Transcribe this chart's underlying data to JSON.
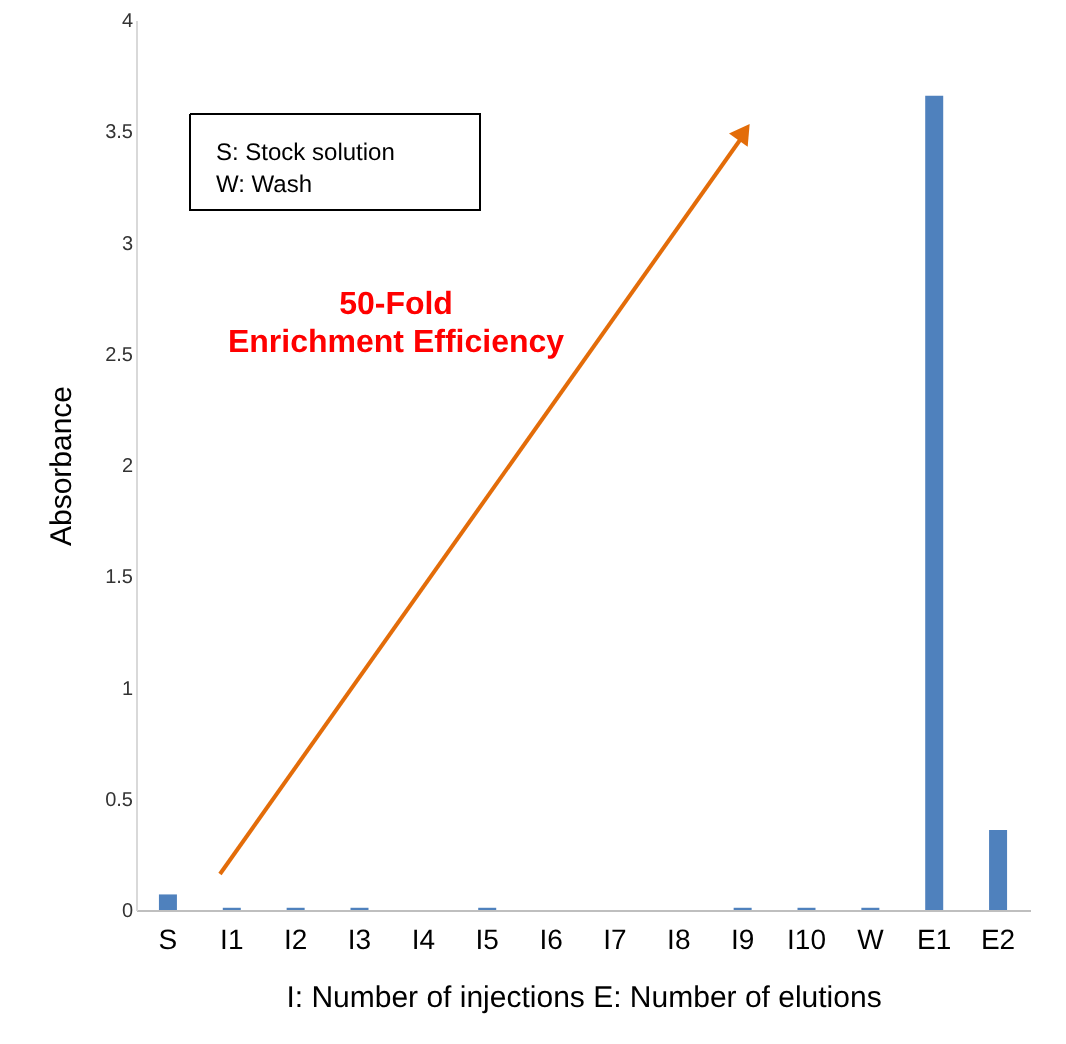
{
  "chart_data": {
    "type": "bar",
    "categories": [
      "S",
      "I1",
      "I2",
      "I3",
      "I4",
      "I5",
      "I6",
      "I7",
      "I8",
      "I9",
      "I10",
      "W",
      "E1",
      "E2"
    ],
    "values": [
      0.07,
      0.01,
      0.01,
      0.01,
      0,
      0.01,
      0,
      0,
      0,
      0.01,
      0.01,
      0.01,
      3.66,
      0.36
    ],
    "color": "#4f81bd",
    "ylabel": "Absorbance",
    "xlabel": "I: Number of injections   E: Number of elutions",
    "ylim": [
      0,
      4
    ],
    "yticks": [
      0,
      0.5,
      1,
      1.5,
      2,
      2.5,
      3,
      3.5,
      4
    ],
    "grid": false,
    "annotations": [
      "S:   Stock solution",
      "W:   Wash",
      "50-Fold\nEnrichment Efficiency"
    ]
  }
}
